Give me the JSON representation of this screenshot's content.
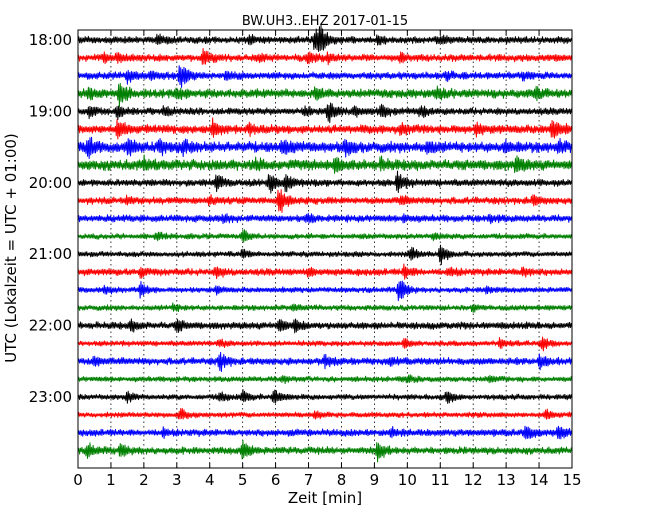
{
  "chart_data": {
    "type": "line",
    "title": "BW.UH3..EHZ 2017-01-15",
    "xlabel": "Zeit  [min]",
    "ylabel": "UTC (Lokalzeit = UTC + 01:00)",
    "xlim": [
      0,
      15
    ],
    "x_ticks": [
      "0",
      "1",
      "2",
      "3",
      "4",
      "5",
      "6",
      "7",
      "8",
      "9",
      "10",
      "11",
      "12",
      "13",
      "14",
      "15"
    ],
    "y_tick_labels": [
      "18:00",
      "19:00",
      "20:00",
      "21:00",
      "22:00",
      "23:00"
    ],
    "grid": true,
    "trace_colors": [
      "#000000",
      "#ff0000",
      "#0000ff",
      "#008000"
    ],
    "series": [
      {
        "start": "18:00",
        "color": "#000000",
        "noise": 4,
        "events": [
          [
            2.4,
            4
          ],
          [
            5.2,
            3
          ],
          [
            7.2,
            11
          ],
          [
            7.35,
            9
          ],
          [
            9.1,
            4
          ],
          [
            11.0,
            3
          ]
        ]
      },
      {
        "start": "18:15",
        "color": "#ff0000",
        "noise": 4,
        "events": [
          [
            0.8,
            3
          ],
          [
            1.2,
            4
          ],
          [
            3.8,
            9
          ],
          [
            5.5,
            3
          ],
          [
            7.0,
            5
          ],
          [
            7.6,
            4
          ],
          [
            9.8,
            3
          ]
        ]
      },
      {
        "start": "18:30",
        "color": "#0000ff",
        "noise": 4,
        "events": [
          [
            1.5,
            5
          ],
          [
            2.2,
            4
          ],
          [
            3.1,
            12
          ],
          [
            4.5,
            4
          ],
          [
            11.2,
            3
          ],
          [
            13.5,
            3
          ]
        ]
      },
      {
        "start": "18:45",
        "color": "#008000",
        "noise": 5,
        "events": [
          [
            0.3,
            5
          ],
          [
            1.25,
            13
          ],
          [
            3.0,
            4
          ],
          [
            7.2,
            5
          ],
          [
            10.9,
            6
          ],
          [
            13.9,
            4
          ]
        ]
      },
      {
        "start": "19:00",
        "color": "#000000",
        "noise": 4,
        "events": [
          [
            0.35,
            5
          ],
          [
            1.2,
            6
          ],
          [
            2.6,
            4
          ],
          [
            6.9,
            4
          ],
          [
            7.6,
            10
          ],
          [
            8.4,
            5
          ],
          [
            9.2,
            5
          ],
          [
            10.4,
            4
          ]
        ]
      },
      {
        "start": "19:15",
        "color": "#ff0000",
        "noise": 5,
        "events": [
          [
            1.2,
            8
          ],
          [
            4.1,
            10
          ],
          [
            5.2,
            4
          ],
          [
            9.8,
            4
          ],
          [
            12.1,
            4
          ],
          [
            14.4,
            9
          ]
        ]
      },
      {
        "start": "19:30",
        "color": "#0000ff",
        "noise": 6,
        "events": [
          [
            0.3,
            9
          ],
          [
            1.5,
            6
          ],
          [
            2.5,
            5
          ],
          [
            3.2,
            5
          ],
          [
            6.2,
            6
          ],
          [
            8.1,
            7
          ],
          [
            10.6,
            5
          ],
          [
            13.0,
            4
          ],
          [
            14.6,
            4
          ]
        ]
      },
      {
        "start": "19:45",
        "color": "#008000",
        "noise": 6,
        "events": [
          [
            2.0,
            5
          ],
          [
            5.4,
            4
          ],
          [
            7.8,
            5
          ],
          [
            9.2,
            4
          ],
          [
            13.3,
            6
          ]
        ]
      },
      {
        "start": "20:00",
        "color": "#000000",
        "noise": 4,
        "events": [
          [
            4.2,
            7
          ],
          [
            5.8,
            11
          ],
          [
            6.3,
            7
          ],
          [
            9.7,
            10
          ]
        ]
      },
      {
        "start": "20:15",
        "color": "#ff0000",
        "noise": 4,
        "events": [
          [
            1.5,
            3
          ],
          [
            4.0,
            4
          ],
          [
            6.1,
            14
          ],
          [
            9.8,
            3
          ],
          [
            13.8,
            4
          ]
        ]
      },
      {
        "start": "20:30",
        "color": "#0000ff",
        "noise": 4,
        "events": [
          [
            4.4,
            3
          ],
          [
            7.0,
            3
          ],
          [
            9.9,
            3
          ],
          [
            12.5,
            3
          ]
        ]
      },
      {
        "start": "20:45",
        "color": "#008000",
        "noise": 3,
        "events": [
          [
            2.4,
            4
          ],
          [
            5.0,
            6
          ],
          [
            10.8,
            3
          ]
        ]
      },
      {
        "start": "21:00",
        "color": "#000000",
        "noise": 3,
        "events": [
          [
            5.0,
            4
          ],
          [
            10.1,
            7
          ],
          [
            11.0,
            10
          ]
        ]
      },
      {
        "start": "21:15",
        "color": "#ff0000",
        "noise": 4,
        "events": [
          [
            1.9,
            4
          ],
          [
            4.2,
            5
          ],
          [
            7.0,
            4
          ],
          [
            9.9,
            6
          ],
          [
            11.3,
            4
          ],
          [
            13.5,
            4
          ]
        ]
      },
      {
        "start": "21:30",
        "color": "#0000ff",
        "noise": 3,
        "events": [
          [
            0.8,
            4
          ],
          [
            1.9,
            7
          ],
          [
            4.2,
            3
          ],
          [
            9.75,
            13
          ],
          [
            12.4,
            3
          ]
        ]
      },
      {
        "start": "21:45",
        "color": "#008000",
        "noise": 3,
        "events": [
          [
            2.9,
            3
          ],
          [
            6.5,
            3
          ],
          [
            12.0,
            3
          ]
        ]
      },
      {
        "start": "22:00",
        "color": "#000000",
        "noise": 4,
        "events": [
          [
            1.6,
            5
          ],
          [
            3.0,
            5
          ],
          [
            6.1,
            6
          ],
          [
            6.6,
            6
          ]
        ]
      },
      {
        "start": "22:15",
        "color": "#ff0000",
        "noise": 3,
        "events": [
          [
            4.3,
            3
          ],
          [
            9.9,
            4
          ],
          [
            12.8,
            4
          ],
          [
            14.1,
            6
          ]
        ]
      },
      {
        "start": "22:30",
        "color": "#0000ff",
        "noise": 4,
        "events": [
          [
            0.5,
            4
          ],
          [
            4.3,
            9
          ],
          [
            7.5,
            5
          ],
          [
            9.5,
            3
          ],
          [
            14.0,
            6
          ]
        ]
      },
      {
        "start": "22:45",
        "color": "#008000",
        "noise": 3,
        "events": [
          [
            6.2,
            3
          ],
          [
            10.0,
            3
          ],
          [
            12.5,
            3
          ]
        ]
      },
      {
        "start": "23:00",
        "color": "#000000",
        "noise": 3,
        "events": [
          [
            1.5,
            5
          ],
          [
            4.3,
            5
          ],
          [
            5.0,
            5
          ],
          [
            5.95,
            8
          ],
          [
            11.2,
            6
          ]
        ]
      },
      {
        "start": "23:15",
        "color": "#ff0000",
        "noise": 3,
        "events": [
          [
            3.1,
            5
          ],
          [
            7.2,
            3
          ],
          [
            14.2,
            4
          ]
        ]
      },
      {
        "start": "23:30",
        "color": "#0000ff",
        "noise": 4,
        "events": [
          [
            2.6,
            3
          ],
          [
            9.5,
            4
          ],
          [
            13.6,
            7
          ],
          [
            14.6,
            6
          ]
        ]
      },
      {
        "start": "23:45",
        "color": "#008000",
        "noise": 4,
        "events": [
          [
            0.3,
            6
          ],
          [
            1.3,
            6
          ],
          [
            5.0,
            8
          ],
          [
            9.1,
            10
          ]
        ]
      }
    ]
  }
}
